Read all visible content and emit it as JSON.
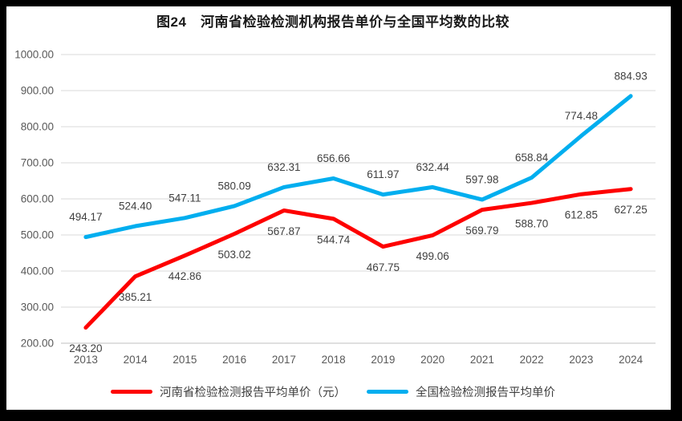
{
  "title": "图24　河南省检验检测机构报告单价与全国平均数的比较",
  "chart_data": {
    "type": "line",
    "categories": [
      "2013",
      "2014",
      "2015",
      "2016",
      "2017",
      "2018",
      "2019",
      "2020",
      "2021",
      "2022",
      "2023",
      "2024"
    ],
    "series": [
      {
        "id": "henan",
        "name": "河南省检验检测报告平均单价（元）",
        "color": "#FE0000",
        "label_position": "below",
        "values": [
          243.2,
          385.21,
          442.86,
          503.02,
          567.87,
          544.74,
          467.75,
          499.06,
          569.79,
          588.7,
          612.85,
          627.25
        ]
      },
      {
        "id": "national",
        "name": "全国检验检测报告平均单价",
        "color": "#00AEEF",
        "label_position": "above",
        "values": [
          494.17,
          524.4,
          547.11,
          580.09,
          632.31,
          656.66,
          611.97,
          632.44,
          597.98,
          658.84,
          774.48,
          884.93
        ]
      }
    ],
    "ylim": [
      200,
      1000
    ],
    "ytick_step": 100,
    "value_decimals": 2,
    "grid": true,
    "legend_position": "bottom",
    "colors": {
      "grid": "#D9D9D9",
      "baseline": "#BFBFBF",
      "axis_label": "#595959",
      "data_label": "#404040",
      "frame": "#000000",
      "background": "#FFFFFF"
    }
  }
}
